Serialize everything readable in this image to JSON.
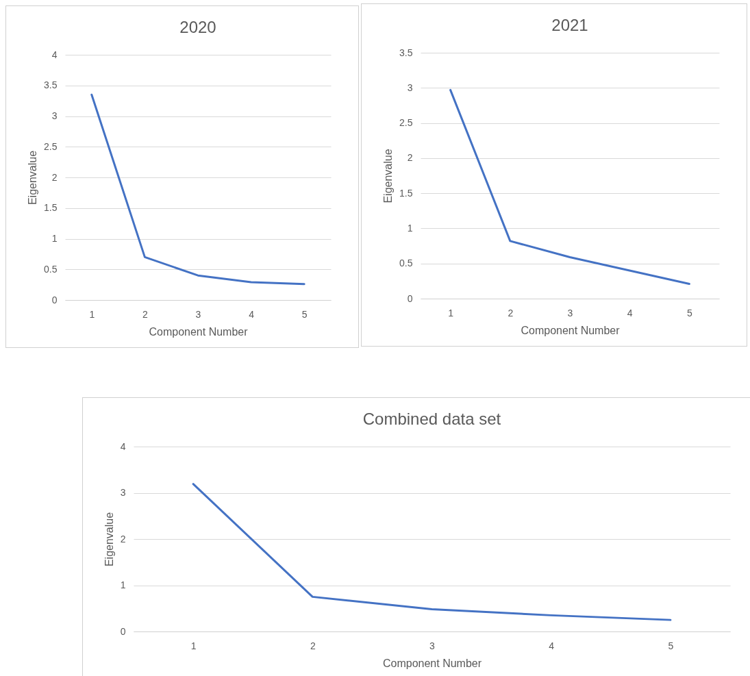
{
  "chart_data": [
    {
      "type": "line",
      "title": "2020",
      "xlabel": "Component Number",
      "ylabel": "Eigenvalue",
      "categories": [
        "1",
        "2",
        "3",
        "4",
        "5"
      ],
      "series": [
        {
          "color": "#4472c4",
          "values": [
            3.35,
            0.7,
            0.4,
            0.29,
            0.26
          ]
        }
      ],
      "ylim": [
        0,
        4
      ],
      "yticks": [
        0,
        0.5,
        1,
        1.5,
        2,
        2.5,
        3,
        3.5,
        4
      ],
      "grid": "y"
    },
    {
      "type": "line",
      "title": "2021",
      "xlabel": "Component Number",
      "ylabel": "Eigenvalue",
      "categories": [
        "1",
        "2",
        "3",
        "4",
        "5"
      ],
      "series": [
        {
          "color": "#4472c4",
          "values": [
            2.97,
            0.82,
            0.59,
            0.4,
            0.21
          ]
        }
      ],
      "ylim": [
        0,
        3.5
      ],
      "yticks": [
        0,
        0.5,
        1,
        1.5,
        2,
        2.5,
        3,
        3.5
      ],
      "grid": "y"
    },
    {
      "type": "line",
      "title": "Combined data set",
      "xlabel": "Component Number",
      "ylabel": "Eigenvalue",
      "categories": [
        "1",
        "2",
        "3",
        "4",
        "5"
      ],
      "series": [
        {
          "color": "#4472c4",
          "values": [
            3.19,
            0.75,
            0.48,
            0.35,
            0.25
          ]
        }
      ],
      "ylim": [
        0,
        4
      ],
      "yticks": [
        0,
        1,
        2,
        3,
        4
      ],
      "grid": "y"
    }
  ]
}
